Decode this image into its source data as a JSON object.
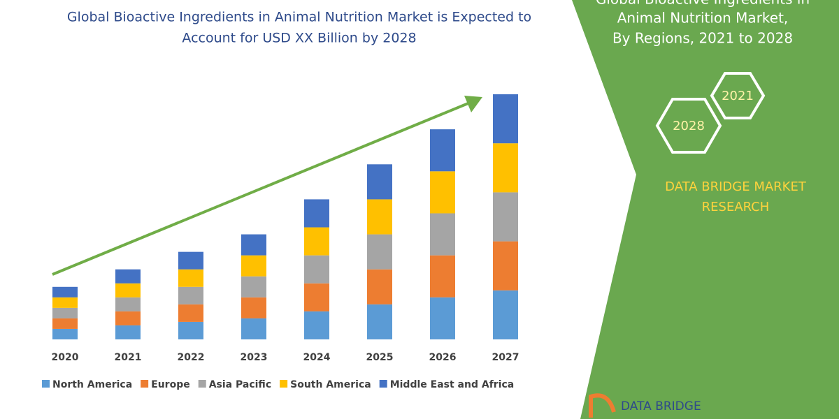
{
  "chart_data": {
    "type": "stacked-bar",
    "title_lines": [
      "Global Bioactive Ingredients in Animal Nutrition Market is Expected to",
      "Account for  USD XX Billion by 2028"
    ],
    "categories": [
      "2020",
      "2021",
      "2022",
      "2023",
      "2024",
      "2025",
      "2026",
      "2027"
    ],
    "series": [
      {
        "name": "North America",
        "color": "#5b9bd5",
        "values": [
          15,
          20,
          25,
          30,
          40,
          50,
          60,
          70
        ]
      },
      {
        "name": "Europe",
        "color": "#ed7d31",
        "values": [
          15,
          20,
          25,
          30,
          40,
          50,
          60,
          70
        ]
      },
      {
        "name": "Asia Pacific",
        "color": "#a5a5a5",
        "values": [
          15,
          20,
          25,
          30,
          40,
          50,
          60,
          70
        ]
      },
      {
        "name": "South America",
        "color": "#ffc000",
        "values": [
          15,
          20,
          25,
          30,
          40,
          50,
          60,
          70
        ]
      },
      {
        "name": "Middle East and Africa",
        "color": "#4472c4",
        "values": [
          15,
          20,
          25,
          30,
          40,
          50,
          60,
          70
        ]
      }
    ]
  },
  "panel": {
    "title_lines": [
      "Global Bioactive Ingredients in",
      "Animal Nutrition Market,",
      "By Regions, 2021 to 2028"
    ],
    "hexagons": [
      "2028",
      "2021"
    ],
    "brand_lines": [
      "DATA BRIDGE MARKET",
      "RESEARCH"
    ],
    "logo": "DATA BRIDGE"
  }
}
